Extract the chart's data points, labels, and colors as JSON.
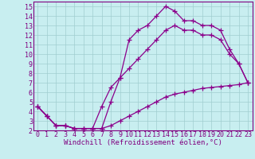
{
  "line1_x": [
    0,
    1,
    2,
    3,
    4,
    5,
    6,
    7,
    8,
    9,
    10,
    11,
    12,
    13,
    14,
    15,
    16,
    17,
    18,
    19,
    20,
    21,
    22,
    23
  ],
  "line1_y": [
    4.5,
    3.5,
    2.5,
    2.5,
    2.2,
    2.2,
    2.2,
    2.2,
    5.0,
    7.5,
    11.5,
    12.5,
    13.0,
    14.0,
    15.0,
    14.5,
    13.5,
    13.5,
    13.0,
    13.0,
    12.5,
    10.5,
    9.0,
    7.0
  ],
  "line2_x": [
    0,
    1,
    2,
    3,
    4,
    5,
    6,
    7,
    8,
    9,
    10,
    11,
    12,
    13,
    14,
    15,
    16,
    17,
    18,
    19,
    20,
    21,
    22,
    23
  ],
  "line2_y": [
    4.5,
    3.5,
    2.5,
    2.5,
    2.2,
    2.2,
    2.2,
    4.5,
    6.5,
    7.5,
    8.5,
    9.5,
    10.5,
    11.5,
    12.5,
    13.0,
    12.5,
    12.5,
    12.0,
    12.0,
    11.5,
    10.0,
    9.0,
    7.0
  ],
  "line3_x": [
    0,
    1,
    2,
    3,
    4,
    5,
    6,
    7,
    8,
    9,
    10,
    11,
    12,
    13,
    14,
    15,
    16,
    17,
    18,
    19,
    20,
    21,
    22,
    23
  ],
  "line3_y": [
    4.5,
    3.5,
    2.5,
    2.5,
    2.2,
    2.2,
    2.2,
    2.2,
    2.5,
    3.0,
    3.5,
    4.0,
    4.5,
    5.0,
    5.5,
    5.8,
    6.0,
    6.2,
    6.4,
    6.5,
    6.6,
    6.7,
    6.8,
    7.0
  ],
  "color": "#8B008B",
  "background_color": "#c8eef0",
  "grid_color": "#a0cdd0",
  "axis_color": "#800080",
  "xlabel": "Windchill (Refroidissement éolien,°C)",
  "xlim": [
    -0.5,
    23.5
  ],
  "ylim": [
    2,
    15.5
  ],
  "xticks": [
    0,
    1,
    2,
    3,
    4,
    5,
    6,
    7,
    8,
    9,
    10,
    11,
    12,
    13,
    14,
    15,
    16,
    17,
    18,
    19,
    20,
    21,
    22,
    23
  ],
  "yticks": [
    2,
    3,
    4,
    5,
    6,
    7,
    8,
    9,
    10,
    11,
    12,
    13,
    14,
    15
  ],
  "marker": "+",
  "linewidth": 0.9,
  "markersize": 4,
  "xlabel_fontsize": 6.5,
  "tick_fontsize": 6.0
}
